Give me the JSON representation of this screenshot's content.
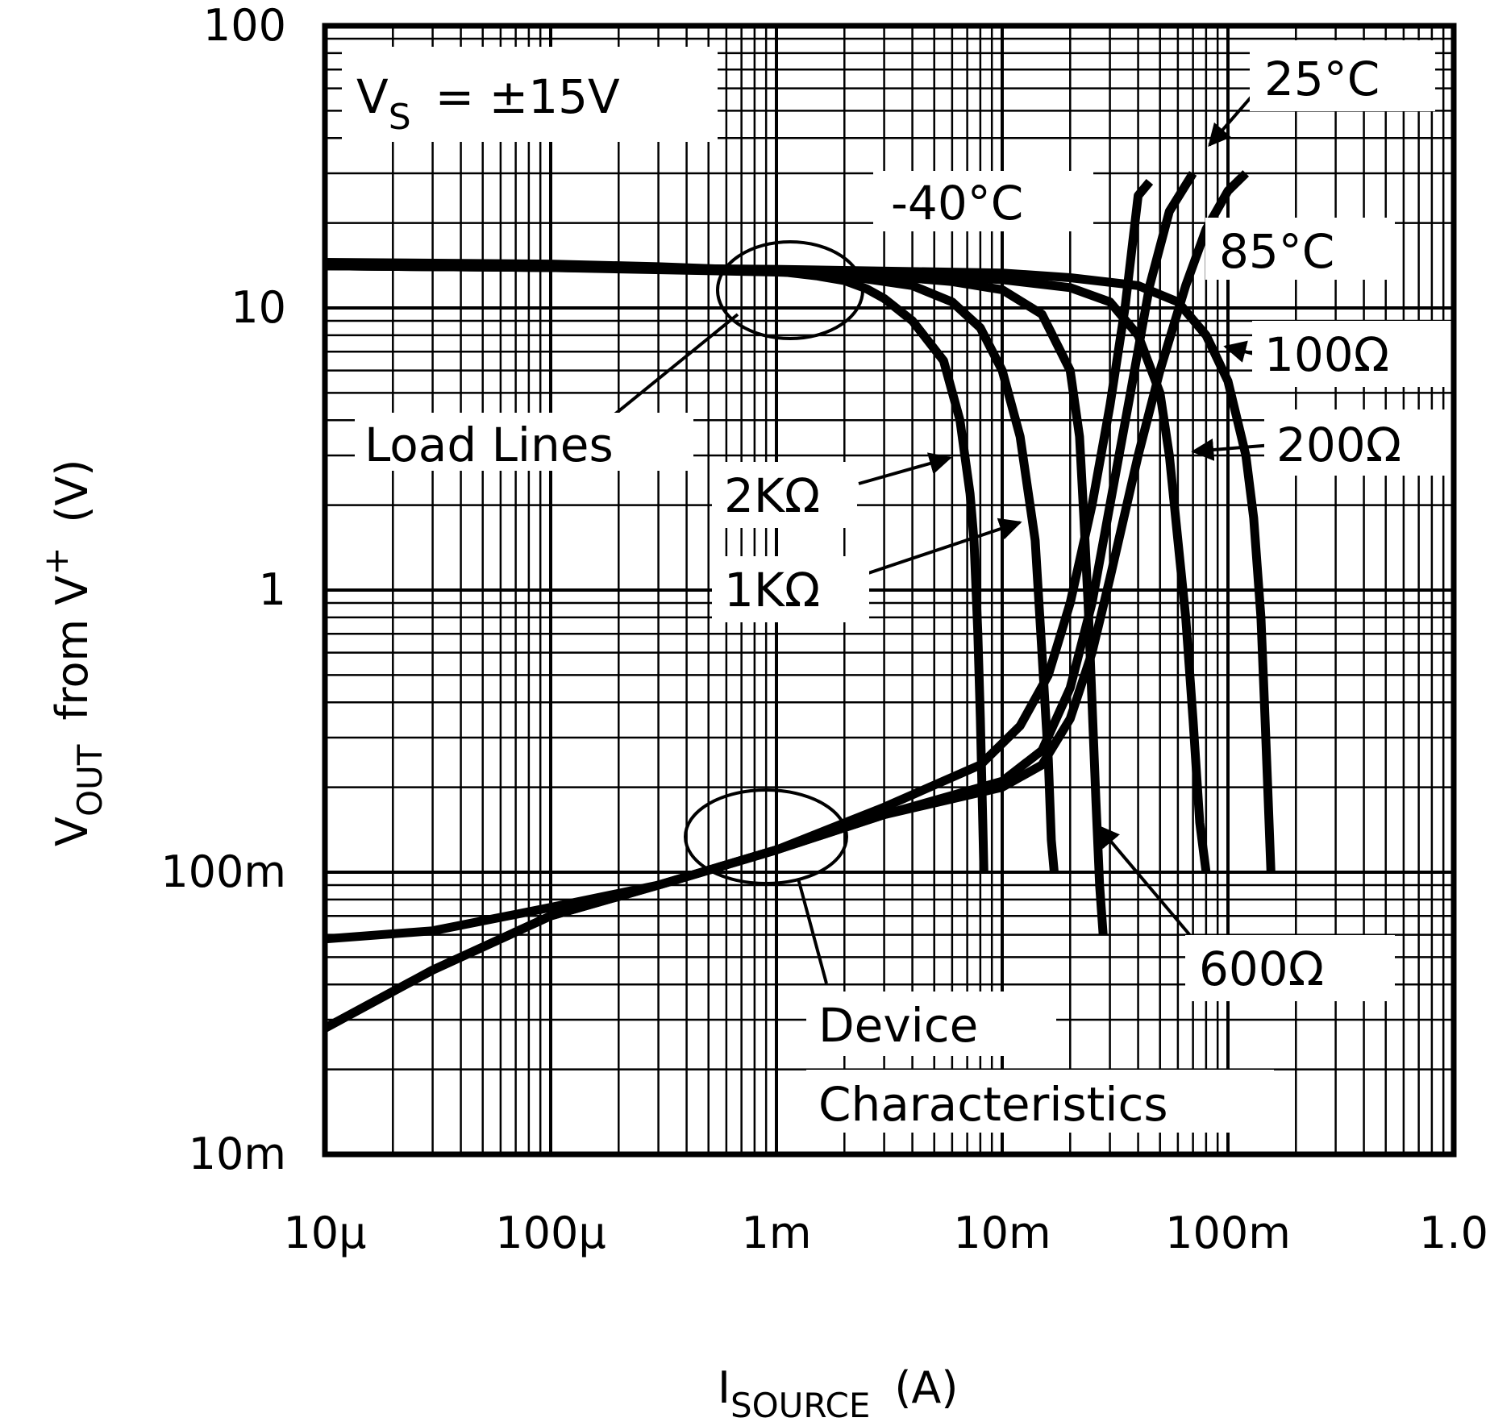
{
  "chart_data": {
    "type": "line",
    "x_scale": "log",
    "y_scale": "log",
    "xlim": [
      1e-05,
      1.0
    ],
    "ylim": [
      0.01,
      100
    ],
    "grid": true,
    "x_ticks": [
      "10µ",
      "100µ",
      "1m",
      "10m",
      "100m",
      "1.0"
    ],
    "y_ticks": [
      "100",
      "10",
      "1",
      "100m",
      "10m"
    ],
    "xlabel_main": "I",
    "xlabel_sub": "SOURCE",
    "xlabel_unit": "(A)",
    "ylabel_main": "V",
    "ylabel_sub": "OUT",
    "ylabel_rest": "from V",
    "ylabel_sup": "+",
    "ylabel_unit": "(V)",
    "condition_main": "V",
    "condition_sub": "S",
    "condition_rest": "= ±15V",
    "annotations": {
      "load_lines": "Load Lines",
      "device_characteristics_1": "Device",
      "device_characteristics_2": "Characteristics",
      "temp_minus40": "-40°C",
      "temp_25": "25°C",
      "temp_85": "85°C",
      "r_100": "100Ω",
      "r_200": "200Ω",
      "r_600": "600Ω",
      "r_1k": "1KΩ",
      "r_2k": "2KΩ"
    },
    "series": [
      {
        "name": "2KΩ",
        "group": "load_line",
        "x": [
          1e-05,
          0.0001,
          0.0003,
          0.001,
          0.0015,
          0.002,
          0.0025,
          0.003,
          0.004,
          0.0055,
          0.0065,
          0.0072,
          0.0075,
          0.0078,
          0.008,
          0.0082,
          0.0083
        ],
        "y": [
          14.5,
          14.3,
          14.0,
          13.5,
          13.0,
          12.5,
          11.7,
          10.8,
          9.0,
          6.5,
          4.0,
          2.2,
          1.5,
          0.7,
          0.35,
          0.15,
          0.1
        ]
      },
      {
        "name": "1KΩ",
        "group": "load_line",
        "x": [
          1e-05,
          0.0001,
          0.001,
          0.002,
          0.004,
          0.006,
          0.008,
          0.01,
          0.012,
          0.014,
          0.015,
          0.016,
          0.0165,
          0.017
        ],
        "y": [
          14.3,
          14.1,
          13.5,
          13.0,
          12.0,
          10.5,
          8.5,
          6.0,
          3.5,
          1.5,
          0.6,
          0.25,
          0.13,
          0.1
        ]
      },
      {
        "name": "600Ω",
        "group": "load_line",
        "x": [
          1e-05,
          0.0001,
          0.001,
          0.003,
          0.006,
          0.01,
          0.015,
          0.02,
          0.022,
          0.023,
          0.024,
          0.025,
          0.026,
          0.027,
          0.028
        ],
        "y": [
          14.1,
          13.9,
          13.4,
          13.0,
          12.4,
          11.6,
          9.5,
          6.0,
          3.5,
          1.8,
          0.9,
          0.4,
          0.18,
          0.09,
          0.06
        ]
      },
      {
        "name": "200Ω",
        "group": "load_line",
        "x": [
          1e-05,
          0.0001,
          0.001,
          0.003,
          0.01,
          0.02,
          0.03,
          0.04,
          0.05,
          0.055,
          0.06,
          0.065,
          0.07,
          0.075,
          0.08
        ],
        "y": [
          14.1,
          13.9,
          13.6,
          13.3,
          12.6,
          11.8,
          10.5,
          8.0,
          5.0,
          3.0,
          1.5,
          0.8,
          0.35,
          0.15,
          0.1
        ]
      },
      {
        "name": "100Ω",
        "group": "load_line",
        "x": [
          1e-05,
          0.0001,
          0.001,
          0.01,
          0.02,
          0.04,
          0.06,
          0.08,
          0.1,
          0.12,
          0.13,
          0.14,
          0.145,
          0.15,
          0.155
        ],
        "y": [
          14.1,
          13.9,
          13.7,
          13.3,
          12.8,
          12.0,
          10.5,
          8.0,
          5.5,
          3.0,
          1.8,
          0.8,
          0.4,
          0.2,
          0.1
        ]
      },
      {
        "name": "-40°C",
        "group": "device_characteristic",
        "x": [
          1e-05,
          3e-05,
          0.0001,
          0.0003,
          0.001,
          0.003,
          0.008,
          0.012,
          0.016,
          0.02,
          0.025,
          0.03,
          0.035,
          0.04,
          0.045
        ],
        "y": [
          0.058,
          0.062,
          0.075,
          0.09,
          0.12,
          0.17,
          0.24,
          0.33,
          0.5,
          0.9,
          2.0,
          4.5,
          10.0,
          25.0,
          28.0
        ]
      },
      {
        "name": "25°C",
        "group": "device_characteristic",
        "x": [
          1e-05,
          3e-05,
          0.0001,
          0.0003,
          0.001,
          0.003,
          0.01,
          0.015,
          0.02,
          0.025,
          0.03,
          0.037,
          0.045,
          0.055,
          0.07
        ],
        "y": [
          0.028,
          0.045,
          0.07,
          0.09,
          0.12,
          0.16,
          0.21,
          0.27,
          0.45,
          0.9,
          2.0,
          5.0,
          12.0,
          22.0,
          30.0
        ]
      },
      {
        "name": "85°C",
        "group": "device_characteristic",
        "x": [
          1e-05,
          3e-05,
          0.0001,
          0.0003,
          0.001,
          0.003,
          0.01,
          0.015,
          0.02,
          0.025,
          0.03,
          0.04,
          0.05,
          0.065,
          0.08,
          0.1,
          0.12
        ],
        "y": [
          0.028,
          0.045,
          0.07,
          0.09,
          0.12,
          0.16,
          0.2,
          0.24,
          0.35,
          0.6,
          1.1,
          3.0,
          6.0,
          12.0,
          19.0,
          26.0,
          30.0
        ]
      }
    ]
  }
}
